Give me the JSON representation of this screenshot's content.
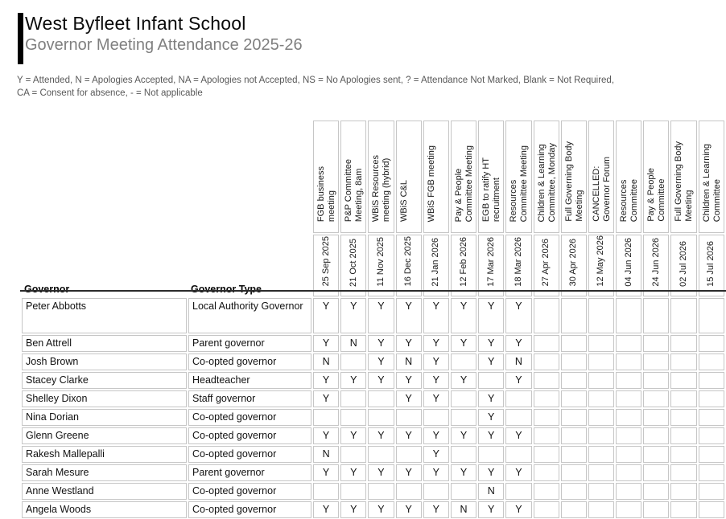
{
  "header": {
    "title": "West Byfleet Infant School",
    "subtitle": "Governor Meeting Attendance 2025-26",
    "legend_line1": "Y = Attended, N = Apologies Accepted, NA = Apologies not Accepted, NS = No Apologies sent, ? = Attendance Not Marked, Blank = Not Required,",
    "legend_line2": "CA = Consent for absence, - = Not applicable"
  },
  "colors": {
    "accent_bar": "#000000",
    "subtitle_text": "#7f7f7f",
    "legend_text": "#595959",
    "grid_border": "#c6c6c6",
    "header_rule": "#2b2b2b"
  },
  "table": {
    "governor_header": "Governor",
    "governor_type_header": "Governor Type",
    "meetings": [
      {
        "name": "FGB business\nmeeting",
        "date": "25 Sep 2025"
      },
      {
        "name": "P&P Committee\nMeeting, 8am",
        "date": "21 Oct 2025"
      },
      {
        "name": "WBiS Resources\nmeeting (hybrid)",
        "date": "11 Nov 2025"
      },
      {
        "name": "WBiS C&L",
        "date": "16 Dec 2025"
      },
      {
        "name": "WBiS FGB meeting",
        "date": "21 Jan 2026"
      },
      {
        "name": "Pay & People\nCommittee Meeting",
        "date": "12 Feb 2026"
      },
      {
        "name": "EGB to ratify HT\nrecruitment",
        "date": "17 Mar 2026"
      },
      {
        "name": "Resources\nCommittee Meeting",
        "date": "18 Mar 2026"
      },
      {
        "name": "Children & Learning\nCommittee, Monday",
        "date": "27 Apr 2026"
      },
      {
        "name": "Full Governing Body\nMeeting",
        "date": "30 Apr 2026"
      },
      {
        "name": "CANCELLED:\nGovernor Forum",
        "date": "12 May 2026"
      },
      {
        "name": "Resources\nCommittee",
        "date": "04 Jun 2026"
      },
      {
        "name": "Pay & People\nCommittee",
        "date": "24 Jun 2026"
      },
      {
        "name": "Full Governing Body\nMeeting",
        "date": "02 Jul 2026"
      },
      {
        "name": "Children & Learning\nCommittee",
        "date": "15 Jul 2026"
      }
    ],
    "rows": [
      {
        "governor": "Peter Abbotts",
        "type": "Local Authority Governor",
        "attendance": [
          "Y",
          "Y",
          "Y",
          "Y",
          "Y",
          "Y",
          "Y",
          "Y",
          "",
          "",
          "",
          "",
          "",
          "",
          ""
        ]
      },
      {
        "governor": "Ben Attrell",
        "type": "Parent governor",
        "attendance": [
          "Y",
          "N",
          "Y",
          "Y",
          "Y",
          "Y",
          "Y",
          "Y",
          "",
          "",
          "",
          "",
          "",
          "",
          ""
        ]
      },
      {
        "governor": "Josh Brown",
        "type": "Co-opted governor",
        "attendance": [
          "N",
          "",
          "Y",
          "N",
          "Y",
          "",
          "Y",
          "N",
          "",
          "",
          "",
          "",
          "",
          "",
          ""
        ]
      },
      {
        "governor": "Stacey Clarke",
        "type": "Headteacher",
        "attendance": [
          "Y",
          "Y",
          "Y",
          "Y",
          "Y",
          "Y",
          "",
          "Y",
          "",
          "",
          "",
          "",
          "",
          "",
          ""
        ]
      },
      {
        "governor": "Shelley Dixon",
        "type": "Staff governor",
        "attendance": [
          "Y",
          "",
          "",
          "Y",
          "Y",
          "",
          "Y",
          "",
          "",
          "",
          "",
          "",
          "",
          "",
          ""
        ]
      },
      {
        "governor": "Nina Dorian",
        "type": "Co-opted governor",
        "attendance": [
          "",
          "",
          "",
          "",
          "",
          "",
          "Y",
          "",
          "",
          "",
          "",
          "",
          "",
          "",
          ""
        ]
      },
      {
        "governor": "Glenn Greene",
        "type": "Co-opted governor",
        "attendance": [
          "Y",
          "Y",
          "Y",
          "Y",
          "Y",
          "Y",
          "Y",
          "Y",
          "",
          "",
          "",
          "",
          "",
          "",
          ""
        ]
      },
      {
        "governor": "Rakesh Mallepalli",
        "type": "Co-opted governor",
        "attendance": [
          "N",
          "",
          "",
          "",
          "Y",
          "",
          "",
          "",
          "",
          "",
          "",
          "",
          "",
          "",
          ""
        ]
      },
      {
        "governor": "Sarah Mesure",
        "type": "Parent governor",
        "attendance": [
          "Y",
          "Y",
          "Y",
          "Y",
          "Y",
          "Y",
          "Y",
          "Y",
          "",
          "",
          "",
          "",
          "",
          "",
          ""
        ]
      },
      {
        "governor": "Anne Westland",
        "type": "Co-opted governor",
        "attendance": [
          "",
          "",
          "",
          "",
          "",
          "",
          "N",
          "",
          "",
          "",
          "",
          "",
          "",
          "",
          ""
        ]
      },
      {
        "governor": "Angela Woods",
        "type": "Co-opted governor",
        "attendance": [
          "Y",
          "Y",
          "Y",
          "Y",
          "Y",
          "N",
          "Y",
          "Y",
          "",
          "",
          "",
          "",
          "",
          "",
          ""
        ]
      }
    ]
  }
}
